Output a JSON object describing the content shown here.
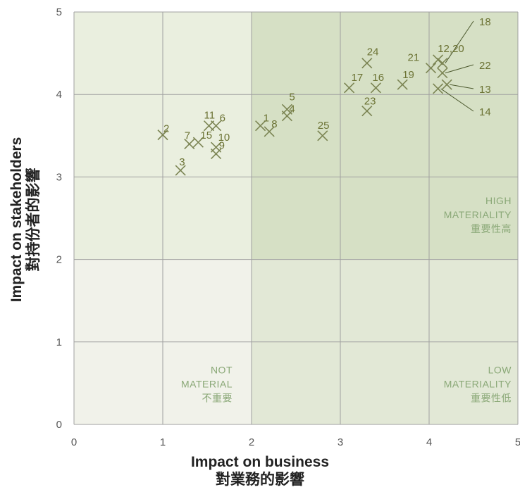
{
  "chart_data": {
    "type": "scatter",
    "xlabel": "Impact on business",
    "xlabel_zh": "對業務的影響",
    "ylabel": "Impact on stakeholders",
    "ylabel_zh": "對持份者的影響",
    "xlim": [
      0,
      5
    ],
    "ylim": [
      0,
      5
    ],
    "x_ticks": [
      "0",
      "1",
      "2",
      "3",
      "4",
      "5"
    ],
    "y_ticks": [
      "0",
      "1",
      "2",
      "3",
      "4",
      "5"
    ],
    "grid": true,
    "marker": "x",
    "points": [
      {
        "label": "1",
        "x": 2.1,
        "y": 3.62
      },
      {
        "label": "2",
        "x": 1.0,
        "y": 3.51
      },
      {
        "label": "3",
        "x": 1.2,
        "y": 3.08
      },
      {
        "label": "4",
        "x": 2.4,
        "y": 3.74
      },
      {
        "label": "5",
        "x": 2.4,
        "y": 3.82
      },
      {
        "label": "6",
        "x": 1.6,
        "y": 3.62
      },
      {
        "label": "7",
        "x": 1.3,
        "y": 3.4
      },
      {
        "label": "8",
        "x": 2.2,
        "y": 3.55
      },
      {
        "label": "9",
        "x": 1.6,
        "y": 3.28
      },
      {
        "label": "10",
        "x": 1.6,
        "y": 3.36
      },
      {
        "label": "11",
        "x": 1.52,
        "y": 3.62
      },
      {
        "label": "12,20",
        "x": 4.1,
        "y": 4.42
      },
      {
        "label": "13",
        "x": 4.2,
        "y": 4.12
      },
      {
        "label": "14",
        "x": 4.1,
        "y": 4.07
      },
      {
        "label": "15",
        "x": 1.4,
        "y": 3.42
      },
      {
        "label": "16",
        "x": 3.4,
        "y": 4.08
      },
      {
        "label": "17",
        "x": 3.1,
        "y": 4.08
      },
      {
        "label": "18",
        "x": 4.15,
        "y": 4.38
      },
      {
        "label": "19",
        "x": 3.7,
        "y": 4.12
      },
      {
        "label": "21",
        "x": 4.02,
        "y": 4.32
      },
      {
        "label": "22",
        "x": 4.15,
        "y": 4.26
      },
      {
        "label": "23",
        "x": 3.3,
        "y": 3.8
      },
      {
        "label": "24",
        "x": 3.3,
        "y": 4.38
      },
      {
        "label": "25",
        "x": 2.8,
        "y": 3.5
      }
    ],
    "zones": [
      {
        "name": "not_material",
        "lines": [
          "NOT",
          "MATERIAL",
          "不重要"
        ],
        "color": "#f1f2ea"
      },
      {
        "name": "low_materiality",
        "lines": [
          "LOW",
          "MATERIALITY",
          "重要性低"
        ],
        "color": "#e2e8d6"
      },
      {
        "name": "high_materiality",
        "lines": [
          "HIGH",
          "MATERIALITY",
          "重要性高"
        ],
        "color": "#d6e0c5"
      }
    ],
    "colors": {
      "background_light": "#eaefdf",
      "grid": "#a0a0a0",
      "marker": "#7b8453",
      "label": "#6b7233",
      "zone_text": "#8aa877"
    }
  }
}
